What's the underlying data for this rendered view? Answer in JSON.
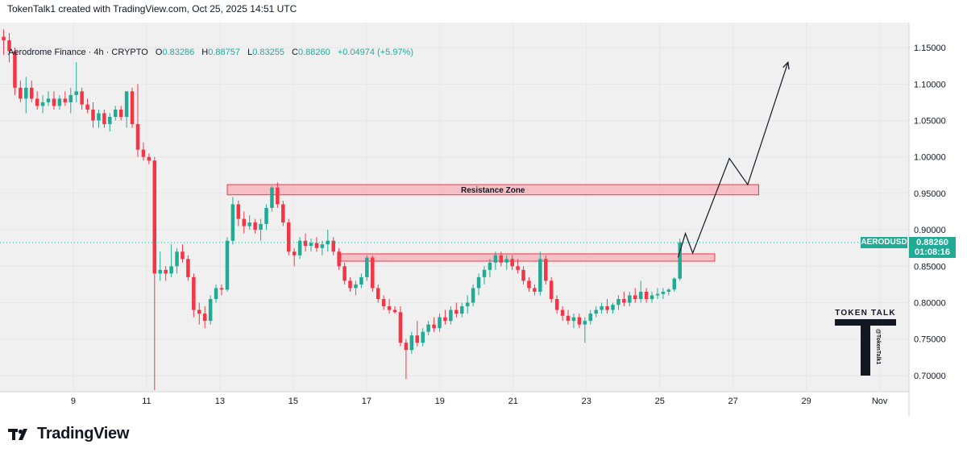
{
  "header": {
    "attribution": "TokenTalk1 created with TradingView.com, Oct 25, 2025 14:51 UTC"
  },
  "legend": {
    "symbol": "Aerodrome Finance · 4h · CRYPTO",
    "o_key": "O",
    "o_val": "0.83286",
    "h_key": "H",
    "h_val": "0.88757",
    "l_key": "L",
    "l_val": "0.83255",
    "c_key": "C",
    "c_val": "0.88260",
    "change": "+0.04974 (+5.97%)"
  },
  "price_label": {
    "symbol": "AERODUSD",
    "price": "0.88260",
    "countdown": "01:08:16"
  },
  "annotations": {
    "resistance_label": "Resistance Zone"
  },
  "watermark": {
    "text": "TOKEN TALK",
    "handle": "@TokenTalk1"
  },
  "brand": {
    "name": "TradingView"
  },
  "colors": {
    "up": "#22ab94",
    "down": "#f23645",
    "zone_fill": "#f7b6bd",
    "zone_stroke": "#f23645",
    "chart_bg": "#f0f0f0"
  },
  "chart_data": {
    "type": "candlestick",
    "interval": "4h",
    "y_range": [
      0.68,
      1.18
    ],
    "y_ticks": [
      "1.15000",
      "1.10000",
      "1.05000",
      "1.00000",
      "0.95000",
      "0.90000",
      "0.85000",
      "0.80000",
      "0.75000",
      "0.70000"
    ],
    "y_tick_values": [
      1.15,
      1.1,
      1.05,
      1.0,
      0.95,
      0.9,
      0.85,
      0.8,
      0.75,
      0.7
    ],
    "x_range_day": [
      7.0,
      31.8
    ],
    "x_ticks": [
      "9",
      "11",
      "13",
      "15",
      "17",
      "19",
      "21",
      "23",
      "25",
      "27",
      "29",
      "Nov"
    ],
    "x_tick_days": [
      9,
      11,
      13,
      15,
      17,
      19,
      21,
      23,
      25,
      27,
      29,
      31
    ],
    "zones": [
      {
        "label": "Resistance Zone",
        "day_start": 13.2,
        "day_end": 27.7,
        "low": 0.948,
        "high": 0.962
      },
      {
        "label": "",
        "day_start": 16.3,
        "day_end": 26.5,
        "low": 0.857,
        "high": 0.867
      }
    ],
    "projection": [
      {
        "day": 25.5,
        "price": 0.862
      },
      {
        "day": 25.7,
        "price": 0.895
      },
      {
        "day": 25.9,
        "price": 0.868
      },
      {
        "day": 26.9,
        "price": 0.998
      },
      {
        "day": 27.4,
        "price": 0.962
      },
      {
        "day": 28.5,
        "price": 1.13
      }
    ],
    "candles_ohlc": [
      [
        1.165,
        1.175,
        1.14,
        1.16
      ],
      [
        1.16,
        1.17,
        1.13,
        1.145
      ],
      [
        1.145,
        1.15,
        1.085,
        1.095
      ],
      [
        1.095,
        1.105,
        1.075,
        1.08
      ],
      [
        1.08,
        1.11,
        1.06,
        1.095
      ],
      [
        1.095,
        1.105,
        1.075,
        1.08
      ],
      [
        1.08,
        1.09,
        1.065,
        1.07
      ],
      [
        1.07,
        1.085,
        1.06,
        1.075
      ],
      [
        1.075,
        1.09,
        1.07,
        1.08
      ],
      [
        1.08,
        1.09,
        1.065,
        1.07
      ],
      [
        1.07,
        1.085,
        1.065,
        1.08
      ],
      [
        1.08,
        1.09,
        1.07,
        1.075
      ],
      [
        1.075,
        1.095,
        1.06,
        1.085
      ],
      [
        1.085,
        1.13,
        1.075,
        1.09
      ],
      [
        1.09,
        1.095,
        1.065,
        1.072
      ],
      [
        1.072,
        1.08,
        1.06,
        1.065
      ],
      [
        1.065,
        1.075,
        1.04,
        1.05
      ],
      [
        1.05,
        1.065,
        1.04,
        1.06
      ],
      [
        1.06,
        1.065,
        1.04,
        1.045
      ],
      [
        1.045,
        1.06,
        1.035,
        1.055
      ],
      [
        1.055,
        1.07,
        1.05,
        1.065
      ],
      [
        1.065,
        1.07,
        1.05,
        1.055
      ],
      [
        1.055,
        1.09,
        1.04,
        1.09
      ],
      [
        1.09,
        1.095,
        1.04,
        1.045
      ],
      [
        1.045,
        1.1,
        1.0,
        1.01
      ],
      [
        1.01,
        1.02,
        0.995,
        1.0
      ],
      [
        1.0,
        1.005,
        0.99,
        0.995
      ],
      [
        0.995,
        1.0,
        0.68,
        0.84
      ],
      [
        0.84,
        0.87,
        0.83,
        0.845
      ],
      [
        0.845,
        0.85,
        0.83,
        0.84
      ],
      [
        0.84,
        0.88,
        0.835,
        0.85
      ],
      [
        0.85,
        0.875,
        0.84,
        0.87
      ],
      [
        0.87,
        0.88,
        0.855,
        0.86
      ],
      [
        0.86,
        0.865,
        0.83,
        0.835
      ],
      [
        0.835,
        0.84,
        0.78,
        0.79
      ],
      [
        0.79,
        0.8,
        0.77,
        0.785
      ],
      [
        0.785,
        0.795,
        0.765,
        0.775
      ],
      [
        0.775,
        0.81,
        0.77,
        0.805
      ],
      [
        0.805,
        0.825,
        0.8,
        0.82
      ],
      [
        0.82,
        0.825,
        0.81,
        0.818
      ],
      [
        0.818,
        0.89,
        0.815,
        0.885
      ],
      [
        0.885,
        0.945,
        0.88,
        0.935
      ],
      [
        0.935,
        0.94,
        0.905,
        0.915
      ],
      [
        0.915,
        0.925,
        0.895,
        0.905
      ],
      [
        0.905,
        0.92,
        0.9,
        0.91
      ],
      [
        0.91,
        0.915,
        0.895,
        0.9
      ],
      [
        0.9,
        0.915,
        0.885,
        0.908
      ],
      [
        0.908,
        0.935,
        0.9,
        0.93
      ],
      [
        0.93,
        0.96,
        0.925,
        0.958
      ],
      [
        0.958,
        0.965,
        0.93,
        0.935
      ],
      [
        0.935,
        0.94,
        0.905,
        0.91
      ],
      [
        0.91,
        0.915,
        0.865,
        0.87
      ],
      [
        0.87,
        0.875,
        0.85,
        0.865
      ],
      [
        0.865,
        0.89,
        0.86,
        0.885
      ],
      [
        0.885,
        0.895,
        0.87,
        0.878
      ],
      [
        0.878,
        0.888,
        0.87,
        0.882
      ],
      [
        0.882,
        0.89,
        0.87,
        0.875
      ],
      [
        0.875,
        0.885,
        0.865,
        0.88
      ],
      [
        0.88,
        0.9,
        0.87,
        0.885
      ],
      [
        0.885,
        0.89,
        0.865,
        0.87
      ],
      [
        0.87,
        0.875,
        0.845,
        0.85
      ],
      [
        0.85,
        0.855,
        0.825,
        0.83
      ],
      [
        0.83,
        0.835,
        0.815,
        0.82
      ],
      [
        0.82,
        0.83,
        0.81,
        0.825
      ],
      [
        0.825,
        0.84,
        0.82,
        0.835
      ],
      [
        0.835,
        0.865,
        0.83,
        0.862
      ],
      [
        0.862,
        0.865,
        0.815,
        0.82
      ],
      [
        0.82,
        0.825,
        0.8,
        0.805
      ],
      [
        0.805,
        0.81,
        0.79,
        0.795
      ],
      [
        0.795,
        0.805,
        0.785,
        0.79
      ],
      [
        0.79,
        0.795,
        0.785,
        0.787
      ],
      [
        0.787,
        0.795,
        0.74,
        0.745
      ],
      [
        0.745,
        0.75,
        0.695,
        0.735
      ],
      [
        0.735,
        0.76,
        0.73,
        0.755
      ],
      [
        0.755,
        0.775,
        0.74,
        0.745
      ],
      [
        0.745,
        0.765,
        0.74,
        0.76
      ],
      [
        0.76,
        0.775,
        0.755,
        0.77
      ],
      [
        0.77,
        0.78,
        0.76,
        0.765
      ],
      [
        0.765,
        0.785,
        0.76,
        0.78
      ],
      [
        0.78,
        0.79,
        0.77,
        0.775
      ],
      [
        0.775,
        0.795,
        0.77,
        0.79
      ],
      [
        0.79,
        0.8,
        0.78,
        0.785
      ],
      [
        0.785,
        0.8,
        0.78,
        0.795
      ],
      [
        0.795,
        0.81,
        0.785,
        0.8
      ],
      [
        0.8,
        0.825,
        0.795,
        0.82
      ],
      [
        0.82,
        0.84,
        0.81,
        0.835
      ],
      [
        0.835,
        0.85,
        0.825,
        0.845
      ],
      [
        0.845,
        0.86,
        0.835,
        0.855
      ],
      [
        0.855,
        0.87,
        0.845,
        0.865
      ],
      [
        0.865,
        0.87,
        0.85,
        0.855
      ],
      [
        0.855,
        0.865,
        0.845,
        0.86
      ],
      [
        0.86,
        0.865,
        0.845,
        0.85
      ],
      [
        0.85,
        0.86,
        0.84,
        0.845
      ],
      [
        0.845,
        0.85,
        0.825,
        0.83
      ],
      [
        0.83,
        0.835,
        0.815,
        0.82
      ],
      [
        0.82,
        0.825,
        0.81,
        0.815
      ],
      [
        0.815,
        0.87,
        0.81,
        0.86
      ],
      [
        0.86,
        0.865,
        0.825,
        0.83
      ],
      [
        0.83,
        0.835,
        0.8,
        0.805
      ],
      [
        0.805,
        0.81,
        0.785,
        0.79
      ],
      [
        0.79,
        0.795,
        0.775,
        0.782
      ],
      [
        0.782,
        0.79,
        0.77,
        0.775
      ],
      [
        0.775,
        0.785,
        0.765,
        0.78
      ],
      [
        0.78,
        0.785,
        0.765,
        0.77
      ],
      [
        0.77,
        0.78,
        0.745,
        0.775
      ],
      [
        0.775,
        0.79,
        0.77,
        0.785
      ],
      [
        0.785,
        0.795,
        0.78,
        0.79
      ],
      [
        0.79,
        0.8,
        0.785,
        0.795
      ],
      [
        0.795,
        0.805,
        0.785,
        0.79
      ],
      [
        0.79,
        0.8,
        0.785,
        0.797
      ],
      [
        0.797,
        0.81,
        0.79,
        0.805
      ],
      [
        0.805,
        0.815,
        0.795,
        0.8
      ],
      [
        0.8,
        0.815,
        0.795,
        0.81
      ],
      [
        0.81,
        0.82,
        0.8,
        0.805
      ],
      [
        0.805,
        0.83,
        0.8,
        0.815
      ],
      [
        0.815,
        0.82,
        0.8,
        0.805
      ],
      [
        0.805,
        0.815,
        0.8,
        0.81
      ],
      [
        0.81,
        0.82,
        0.805,
        0.812
      ],
      [
        0.812,
        0.82,
        0.805,
        0.815
      ],
      [
        0.815,
        0.82,
        0.81,
        0.818
      ],
      [
        0.818,
        0.835,
        0.815,
        0.833
      ],
      [
        0.833,
        0.888,
        0.83,
        0.8826
      ]
    ]
  }
}
